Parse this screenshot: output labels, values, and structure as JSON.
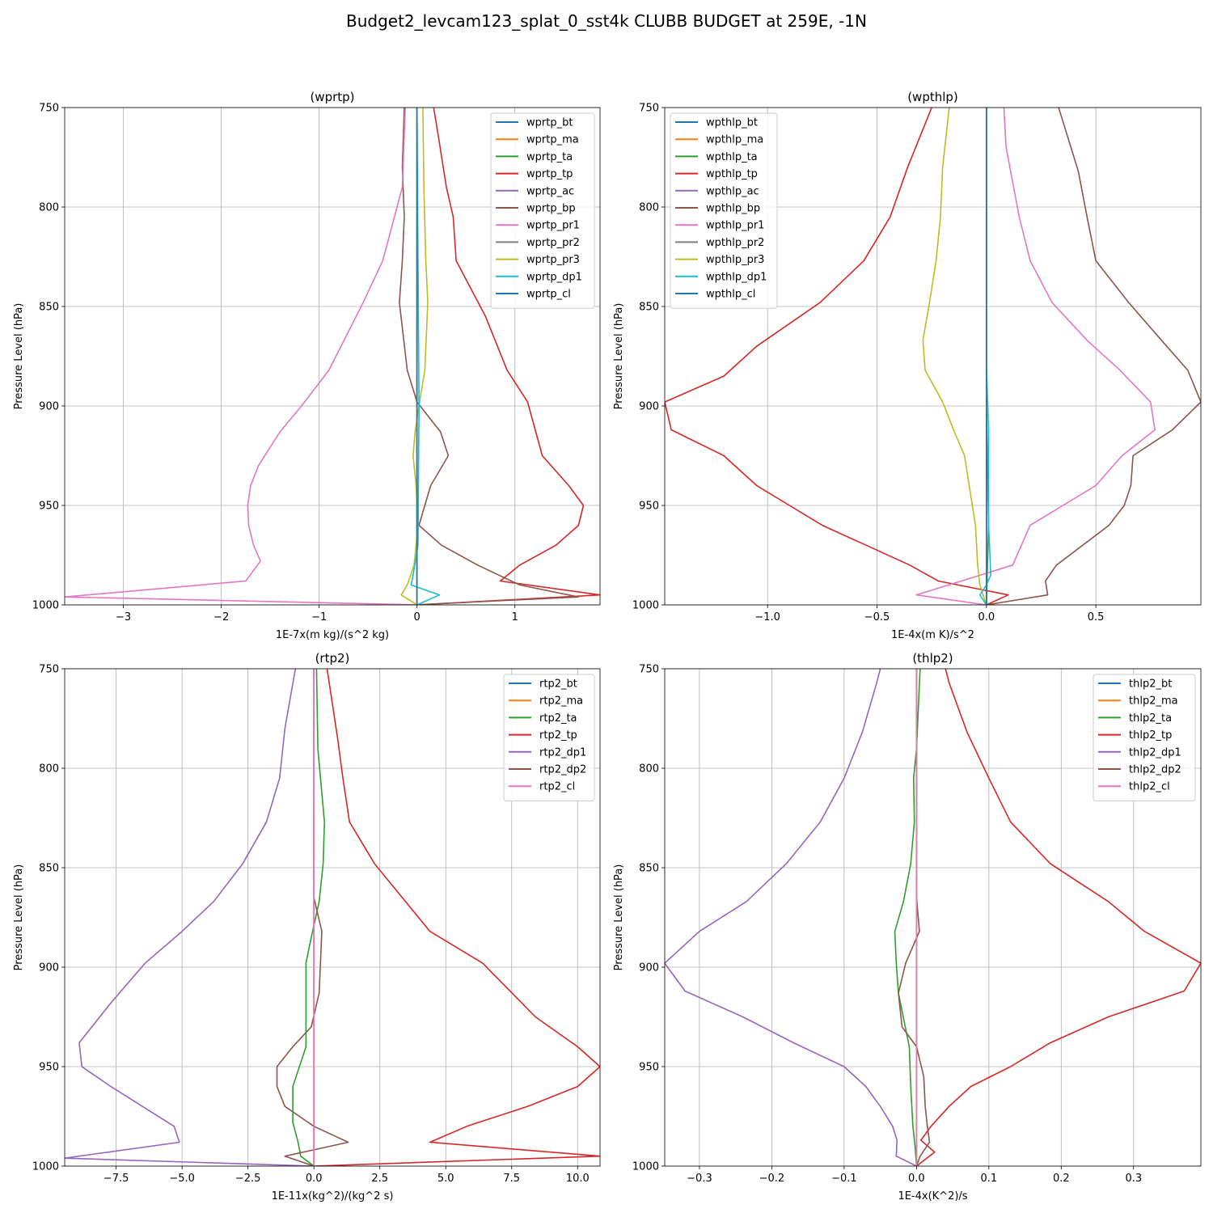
{
  "suptitle": "Budget2_levcam123_splat_0_sst4k CLUBB BUDGET at 259E, -1N",
  "colors": {
    "tab10": [
      "#1f77b4",
      "#ff7f0e",
      "#2ca02c",
      "#d62728",
      "#9467bd",
      "#8c564b",
      "#e377c2",
      "#7f7f7f",
      "#bcbd22",
      "#17becf"
    ],
    "grid": "#b0b0b0"
  },
  "chart_data": [
    {
      "type": "line",
      "title": "(wprtp)",
      "xlabel": "1E-7x(m kg)/(s^2 kg)",
      "ylabel": "Pressure Level (hPa)",
      "xlim": [
        -3.6,
        1.87
      ],
      "ylim": [
        1000,
        750
      ],
      "xticks": [
        -3,
        -2,
        -1,
        0,
        1
      ],
      "xtick_labels": [
        "−3",
        "−2",
        "−1",
        "0",
        "1"
      ],
      "yticks": [
        750,
        800,
        850,
        900,
        950,
        1000
      ],
      "ytick_labels": [
        "750",
        "800",
        "850",
        "900",
        "950",
        "1000"
      ],
      "grid": true,
      "legend_position": "top-right",
      "series": [
        {
          "name": "wprtp_bt",
          "color_index": 0,
          "x": [
            0,
            0
          ],
          "y": [
            1000,
            750
          ]
        },
        {
          "name": "wprtp_ma",
          "color_index": 1,
          "x": [
            0,
            0
          ],
          "y": [
            1000,
            750
          ]
        },
        {
          "name": "wprtp_ta",
          "color_index": 2,
          "x": [
            0,
            0,
            0,
            0
          ],
          "y": [
            1000,
            980,
            900,
            750
          ]
        },
        {
          "name": "wprtp_tp",
          "color_index": 3,
          "x": [
            0.17,
            0.22,
            0.3,
            0.37,
            0.4,
            0.7,
            0.92,
            1.13,
            1.28,
            1.55,
            1.7,
            1.65,
            1.42,
            1.05,
            0.85,
            1.87,
            0.0
          ],
          "y": [
            750,
            765,
            790,
            805,
            827,
            855,
            882,
            898,
            925,
            940,
            950,
            960,
            970,
            980,
            988,
            995,
            1000
          ]
        },
        {
          "name": "wprtp_ac",
          "color_index": 4,
          "x": [
            0,
            0
          ],
          "y": [
            1000,
            750
          ]
        },
        {
          "name": "wprtp_bp",
          "color_index": 5,
          "x": [
            -0.13,
            -0.15,
            -0.13,
            -0.15,
            -0.18,
            -0.1,
            0.0,
            0.24,
            0.32,
            0.14,
            0.02,
            0.25,
            0.62,
            1.05,
            1.65,
            -0.03
          ],
          "y": [
            750,
            780,
            805,
            827,
            848,
            882,
            898,
            913,
            925,
            940,
            960,
            970,
            980,
            990,
            996,
            1000
          ]
        },
        {
          "name": "wprtp_pr1",
          "color_index": 6,
          "x": [
            -0.12,
            -0.15,
            -0.35,
            -0.55,
            -0.9,
            -1.18,
            -1.4,
            -1.62,
            -1.7,
            -1.73,
            -1.72,
            -1.67,
            -1.6,
            -1.75,
            -3.6,
            0.0
          ],
          "y": [
            750,
            790,
            827,
            848,
            882,
            900,
            913,
            930,
            940,
            950,
            960,
            970,
            978,
            988,
            996,
            1000
          ]
        },
        {
          "name": "wprtp_pr2",
          "color_index": 7,
          "x": [
            0,
            0
          ],
          "y": [
            1000,
            750
          ]
        },
        {
          "name": "wprtp_pr3",
          "color_index": 8,
          "x": [
            0.06,
            0.07,
            0.09,
            0.11,
            0.08,
            0.02,
            -0.02,
            -0.04,
            -0.01,
            0.01,
            -0.03,
            -0.1,
            -0.16,
            0.0
          ],
          "y": [
            750,
            790,
            827,
            848,
            882,
            900,
            913,
            925,
            940,
            960,
            980,
            990,
            995,
            1000
          ]
        },
        {
          "name": "wprtp_dp1",
          "color_index": 9,
          "x": [
            0.0,
            0.02,
            0.01,
            -0.04,
            -0.06,
            0.23,
            0.0
          ],
          "y": [
            750,
            900,
            970,
            985,
            990,
            995,
            1000
          ]
        },
        {
          "name": "wprtp_cl",
          "color_index": 0,
          "x": [
            0,
            0
          ],
          "y": [
            1000,
            750
          ]
        }
      ]
    },
    {
      "type": "line",
      "title": "(wpthlp)",
      "xlabel": "1E-4x(m K)/s^2",
      "ylabel": "Pressure Level (hPa)",
      "xlim": [
        -1.47,
        0.98
      ],
      "ylim": [
        1000,
        750
      ],
      "xticks": [
        -1.0,
        -0.5,
        0.0,
        0.5
      ],
      "xtick_labels": [
        "−1.0",
        "−0.5",
        "0.0",
        "0.5"
      ],
      "yticks": [
        750,
        800,
        850,
        900,
        950,
        1000
      ],
      "ytick_labels": [
        "750",
        "800",
        "850",
        "900",
        "950",
        "1000"
      ],
      "grid": true,
      "legend_position": "top-left",
      "series": [
        {
          "name": "wpthlp_bt",
          "color_index": 0,
          "x": [
            0,
            0
          ],
          "y": [
            1000,
            750
          ]
        },
        {
          "name": "wpthlp_ma",
          "color_index": 1,
          "x": [
            0,
            0
          ],
          "y": [
            1000,
            750
          ]
        },
        {
          "name": "wpthlp_ta",
          "color_index": 2,
          "x": [
            0,
            0,
            0.01,
            0
          ],
          "y": [
            750,
            900,
            960,
            1000
          ]
        },
        {
          "name": "wpthlp_tp",
          "color_index": 3,
          "x": [
            -0.25,
            -0.36,
            -0.44,
            -0.56,
            -0.76,
            -1.05,
            -1.2,
            -1.47,
            -1.44,
            -1.2,
            -1.05,
            -0.9,
            -0.75,
            -0.55,
            -0.35,
            -0.22,
            0.1,
            0.0
          ],
          "y": [
            750,
            780,
            805,
            827,
            848,
            870,
            885,
            898,
            912,
            925,
            940,
            950,
            960,
            970,
            980,
            988,
            995,
            1000
          ]
        },
        {
          "name": "wpthlp_ac",
          "color_index": 4,
          "x": [
            0,
            0
          ],
          "y": [
            1000,
            750
          ]
        },
        {
          "name": "wpthlp_bp",
          "color_index": 5,
          "x": [
            0.33,
            0.42,
            0.46,
            0.5,
            0.65,
            0.8,
            0.92,
            0.98,
            0.85,
            0.67,
            0.66,
            0.63,
            0.56,
            0.32,
            0.27,
            0.28,
            0.0
          ],
          "y": [
            750,
            782,
            805,
            827,
            848,
            867,
            882,
            898,
            912,
            925,
            940,
            950,
            960,
            980,
            988,
            995,
            1000
          ]
        },
        {
          "name": "wpthlp_pr1",
          "color_index": 6,
          "x": [
            0.08,
            0.09,
            0.15,
            0.2,
            0.3,
            0.46,
            0.61,
            0.75,
            0.77,
            0.62,
            0.5,
            0.35,
            0.2,
            0.12,
            -0.32,
            0.0
          ],
          "y": [
            750,
            770,
            805,
            827,
            848,
            867,
            882,
            898,
            912,
            925,
            940,
            950,
            960,
            980,
            995,
            1000
          ]
        },
        {
          "name": "wpthlp_pr2",
          "color_index": 7,
          "x": [
            0,
            0
          ],
          "y": [
            1000,
            750
          ]
        },
        {
          "name": "wpthlp_pr3",
          "color_index": 8,
          "x": [
            -0.17,
            -0.2,
            -0.21,
            -0.23,
            -0.26,
            -0.29,
            -0.28,
            -0.2,
            -0.15,
            -0.1,
            -0.05,
            -0.04,
            -0.03,
            0.0
          ],
          "y": [
            750,
            780,
            805,
            827,
            848,
            867,
            882,
            898,
            912,
            925,
            960,
            980,
            990,
            1000
          ]
        },
        {
          "name": "wpthlp_dp1",
          "color_index": 9,
          "x": [
            0.0,
            0.0,
            0.01,
            0.01,
            0.02,
            0.0,
            -0.03,
            0.0
          ],
          "y": [
            750,
            880,
            912,
            960,
            985,
            990,
            995,
            1000
          ]
        },
        {
          "name": "wpthlp_cl",
          "color_index": 0,
          "x": [
            0,
            0
          ],
          "y": [
            1000,
            750
          ]
        }
      ]
    },
    {
      "type": "line",
      "title": "(rtp2)",
      "xlabel": "1E-11x(kg^2)/(kg^2 s)",
      "ylabel": "Pressure Level (hPa)",
      "xlim": [
        -9.45,
        10.85
      ],
      "ylim": [
        1000,
        750
      ],
      "xticks": [
        -7.5,
        -5.0,
        -2.5,
        0.0,
        2.5,
        5.0,
        7.5,
        10.0
      ],
      "xtick_labels": [
        "−7.5",
        "−5.0",
        "−2.5",
        "0.0",
        "2.5",
        "5.0",
        "7.5",
        "10.0"
      ],
      "yticks": [
        750,
        800,
        850,
        900,
        950,
        1000
      ],
      "ytick_labels": [
        "750",
        "800",
        "850",
        "900",
        "950",
        "1000"
      ],
      "grid": true,
      "legend_position": "top-right",
      "series": [
        {
          "name": "rtp2_bt",
          "color_index": 0,
          "x": [
            0,
            0
          ],
          "y": [
            1000,
            750
          ]
        },
        {
          "name": "rtp2_ma",
          "color_index": 1,
          "x": [
            0,
            0
          ],
          "y": [
            1000,
            750
          ]
        },
        {
          "name": "rtp2_ta",
          "color_index": 2,
          "x": [
            0.1,
            0.15,
            0.25,
            0.4,
            0.35,
            0.2,
            -0.1,
            -0.3,
            -0.3,
            -0.3,
            -0.8,
            -0.8,
            -0.6,
            -0.5,
            0.0
          ],
          "y": [
            750,
            790,
            805,
            827,
            848,
            867,
            885,
            898,
            913,
            940,
            960,
            978,
            988,
            995,
            1000
          ]
        },
        {
          "name": "rtp2_tp",
          "color_index": 3,
          "x": [
            0.5,
            0.9,
            1.1,
            1.35,
            2.3,
            4.4,
            6.4,
            8.4,
            10.0,
            10.85,
            10.0,
            8.1,
            5.8,
            4.4,
            10.85,
            0.0
          ],
          "y": [
            750,
            785,
            805,
            827,
            848,
            882,
            898,
            925,
            940,
            950,
            960,
            970,
            980,
            988,
            995,
            1000
          ]
        },
        {
          "name": "rtp2_dp1",
          "color_index": 4,
          "x": [
            -0.7,
            -1.1,
            -1.3,
            -1.8,
            -2.7,
            -3.8,
            -5.0,
            -6.4,
            -7.7,
            -8.9,
            -8.8,
            -7.7,
            -6.5,
            -5.3,
            -5.1,
            -9.45,
            0.0
          ],
          "y": [
            750,
            780,
            805,
            827,
            848,
            867,
            882,
            898,
            918,
            938,
            950,
            960,
            970,
            980,
            988,
            996,
            1000
          ]
        },
        {
          "name": "rtp2_dp2",
          "color_index": 5,
          "x": [
            0.0,
            0.0,
            0.3,
            0.2,
            -0.1,
            -0.8,
            -1.4,
            -1.4,
            -1.1,
            0.0,
            1.3,
            -1.1,
            0.0
          ],
          "y": [
            750,
            865,
            882,
            913,
            930,
            940,
            950,
            960,
            970,
            980,
            988,
            995,
            1000
          ]
        },
        {
          "name": "rtp2_cl",
          "color_index": 6,
          "x": [
            0,
            0
          ],
          "y": [
            1000,
            750
          ]
        }
      ]
    },
    {
      "type": "line",
      "title": "(thlp2)",
      "xlabel": "1E-4x(K^2)/s",
      "ylabel": "Pressure Level (hPa)",
      "xlim": [
        -0.348,
        0.393
      ],
      "ylim": [
        1000,
        750
      ],
      "xticks": [
        -0.3,
        -0.2,
        -0.1,
        0.0,
        0.1,
        0.2,
        0.3
      ],
      "xtick_labels": [
        "−0.3",
        "−0.2",
        "−0.1",
        "0.0",
        "0.1",
        "0.2",
        "0.3"
      ],
      "yticks": [
        750,
        800,
        850,
        900,
        950,
        1000
      ],
      "ytick_labels": [
        "750",
        "800",
        "850",
        "900",
        "950",
        "1000"
      ],
      "grid": true,
      "legend_position": "top-right",
      "series": [
        {
          "name": "thlp2_bt",
          "color_index": 0,
          "x": [
            0,
            0
          ],
          "y": [
            1000,
            750
          ]
        },
        {
          "name": "thlp2_ma",
          "color_index": 1,
          "x": [
            0,
            0
          ],
          "y": [
            1000,
            750
          ]
        },
        {
          "name": "thlp2_ta",
          "color_index": 2,
          "x": [
            0.005,
            0.0,
            -0.004,
            -0.003,
            -0.008,
            -0.018,
            -0.03,
            -0.028,
            -0.025,
            -0.01,
            -0.008,
            -0.005,
            -0.002,
            0.0
          ],
          "y": [
            750,
            790,
            805,
            827,
            848,
            867,
            882,
            898,
            913,
            940,
            960,
            980,
            990,
            1000
          ]
        },
        {
          "name": "thlp2_tp",
          "color_index": 3,
          "x": [
            0.04,
            0.045,
            0.07,
            0.1,
            0.13,
            0.185,
            0.265,
            0.315,
            0.393,
            0.37,
            0.265,
            0.185,
            0.13,
            0.075,
            0.045,
            0.02,
            0.006,
            0.025,
            0.0
          ],
          "y": [
            750,
            757,
            782,
            805,
            827,
            848,
            867,
            882,
            898,
            912,
            925,
            938,
            950,
            960,
            970,
            980,
            987,
            993,
            1000
          ]
        },
        {
          "name": "thlp2_dp1",
          "color_index": 4,
          "x": [
            -0.05,
            -0.055,
            -0.075,
            -0.1,
            -0.133,
            -0.18,
            -0.235,
            -0.3,
            -0.348,
            -0.32,
            -0.24,
            -0.17,
            -0.1,
            -0.07,
            -0.05,
            -0.033,
            -0.027,
            -0.028,
            0.0
          ],
          "y": [
            750,
            757,
            782,
            805,
            827,
            848,
            867,
            882,
            898,
            912,
            925,
            938,
            950,
            960,
            970,
            980,
            987,
            995,
            1000
          ]
        },
        {
          "name": "thlp2_dp2",
          "color_index": 5,
          "x": [
            0.0,
            0.0,
            0.0,
            0.004,
            -0.015,
            -0.025,
            -0.02,
            0.0,
            0.01,
            0.012,
            0.015,
            0.018,
            0.005,
            0.0
          ],
          "y": [
            750,
            810,
            865,
            882,
            898,
            913,
            930,
            940,
            955,
            970,
            980,
            988,
            995,
            1000
          ]
        },
        {
          "name": "thlp2_cl",
          "color_index": 6,
          "x": [
            0,
            0
          ],
          "y": [
            1000,
            750
          ]
        }
      ]
    }
  ]
}
